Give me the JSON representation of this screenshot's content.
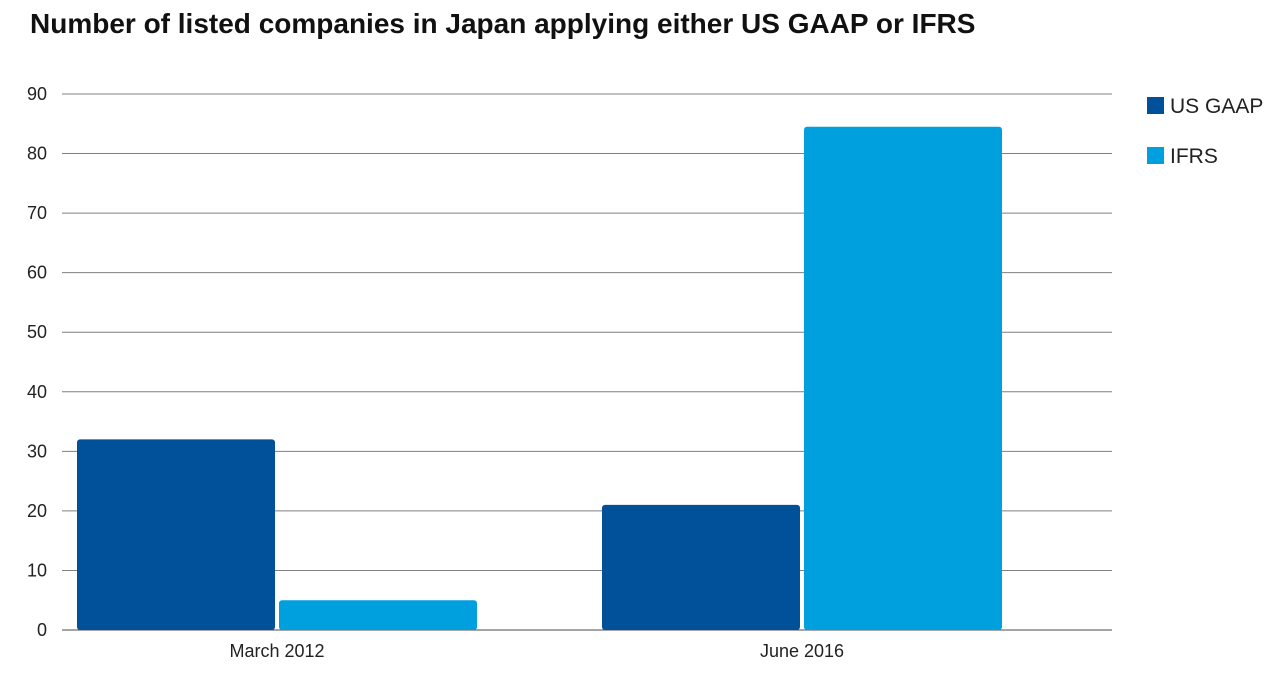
{
  "chart_data": {
    "type": "bar",
    "title": "Number of listed companies in Japan applying either US GAAP or IFRS",
    "xlabel": "",
    "ylabel": "",
    "categories": [
      "March 2012",
      "June 2016"
    ],
    "series": [
      {
        "name": "US GAAP",
        "values": [
          32,
          21
        ],
        "color": "#00509a"
      },
      {
        "name": "IFRS",
        "values": [
          5,
          84.5
        ],
        "color": "#009fde"
      }
    ],
    "ylim": [
      0,
      90
    ],
    "yticks": [
      0,
      10,
      20,
      30,
      40,
      50,
      60,
      70,
      80,
      90
    ],
    "grid": true,
    "legend": "right"
  },
  "colors": {
    "gridline": "#7f7f7f",
    "text": "#222222"
  }
}
